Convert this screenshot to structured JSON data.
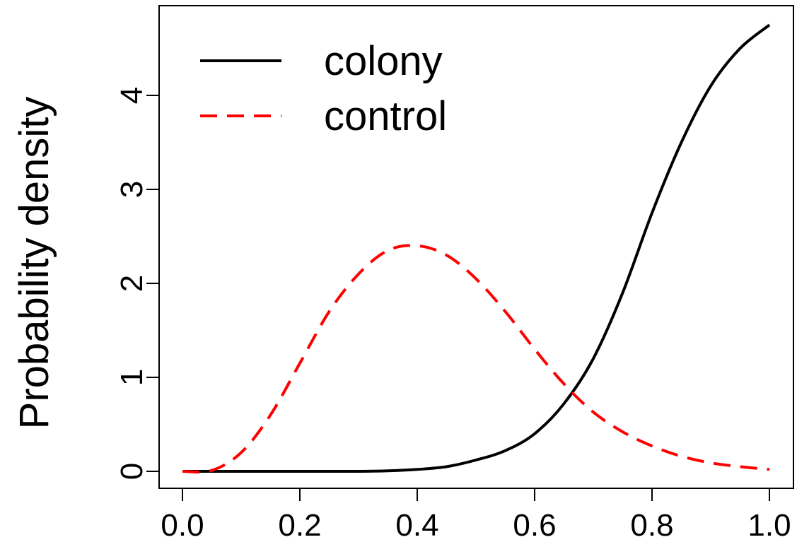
{
  "chart_data": {
    "type": "line",
    "title": "",
    "xlabel": "",
    "ylabel": "Probability density",
    "xlim": [
      0.0,
      1.0
    ],
    "ylim": [
      0,
      4.7
    ],
    "grid": false,
    "legend_position": "top-left",
    "x_ticks": [
      "0.0",
      "0.2",
      "0.4",
      "0.6",
      "0.8",
      "1.0"
    ],
    "y_ticks": [
      "0",
      "1",
      "2",
      "3",
      "4"
    ],
    "series": [
      {
        "name": "colony",
        "style": "solid",
        "color": "#000000",
        "x": [
          0.0,
          0.05,
          0.1,
          0.15,
          0.2,
          0.25,
          0.3,
          0.35,
          0.4,
          0.45,
          0.5,
          0.55,
          0.6,
          0.65,
          0.7,
          0.75,
          0.8,
          0.85,
          0.9,
          0.95,
          1.0
        ],
        "y": [
          0.0,
          0.0,
          0.0,
          0.0,
          0.0,
          0.0,
          0.0,
          0.005,
          0.02,
          0.05,
          0.12,
          0.22,
          0.4,
          0.72,
          1.2,
          1.9,
          2.75,
          3.5,
          4.1,
          4.5,
          4.75
        ]
      },
      {
        "name": "control",
        "style": "dashed",
        "color": "#ff0000",
        "x": [
          0.0,
          0.05,
          0.1,
          0.15,
          0.2,
          0.25,
          0.3,
          0.35,
          0.4,
          0.45,
          0.5,
          0.55,
          0.6,
          0.65,
          0.7,
          0.75,
          0.8,
          0.85,
          0.9,
          0.95,
          1.0
        ],
        "y": [
          0.0,
          0.01,
          0.2,
          0.6,
          1.15,
          1.7,
          2.1,
          2.35,
          2.4,
          2.3,
          2.05,
          1.7,
          1.3,
          0.93,
          0.63,
          0.42,
          0.27,
          0.16,
          0.09,
          0.05,
          0.02
        ]
      }
    ]
  }
}
